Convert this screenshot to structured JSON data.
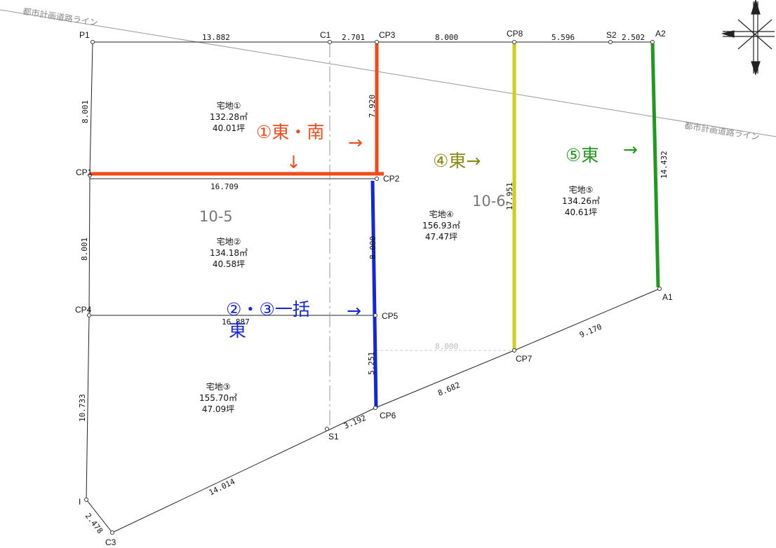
{
  "road_label": "都市計画道路ライン",
  "points": {
    "P1": "P1",
    "C1": "C1",
    "CP3": "CP3",
    "CP8": "CP8",
    "S2": "S2",
    "A2": "A2",
    "CP1": "CP1",
    "CP2": "CP2",
    "CP4": "CP4",
    "CP5": "CP5",
    "CP7": "CP7",
    "A1": "A1",
    "CP6": "CP6",
    "S1": "S1",
    "I": "I",
    "C3": "C3"
  },
  "dims": {
    "p1_c1": "13.882",
    "c1_cp3": "2.701",
    "cp3_cp8": "8.000",
    "cp8_s2": "5.596",
    "s2_a2": "2.502",
    "p1_cp1": "8.001",
    "cp1_cp4": "8.001",
    "cp4_i": "10.733",
    "cp3_cp2": "7.920",
    "cp1_cp2": "16.709",
    "cp4_cp5": "16.887",
    "cp2_cp5": "8.000",
    "cp5_cp6": "5.251",
    "cp8_cp7": "17.951",
    "a2_a1": "14.432",
    "cp5_cp7": "8.000",
    "a1_cp7": "9.170",
    "cp7_cp6": "8.682",
    "cp6_s1": "3.192",
    "s1_c3": "14.014",
    "i_c3": "2.478"
  },
  "lots": {
    "lot1": {
      "name": "宅地①",
      "sqm": "132.28㎡",
      "tsubo": "40.01坪"
    },
    "lot2": {
      "name": "宅地②",
      "sqm": "134.18㎡",
      "tsubo": "40.58坪"
    },
    "lot3": {
      "name": "宅地③",
      "sqm": "155.70㎡",
      "tsubo": "47.09坪"
    },
    "lot4": {
      "name": "宅地④",
      "sqm": "156.93㎡",
      "tsubo": "47.47坪"
    },
    "lot5": {
      "name": "宅地⑤",
      "sqm": "134.26㎡",
      "tsubo": "40.61坪"
    }
  },
  "area_labels": {
    "a105": "10-5",
    "a106": "10-6"
  },
  "annotations": {
    "lot1_face": "①東・南",
    "arrow_right": "→",
    "arrow_down": "↓",
    "lot23_face": "②・③一括",
    "lot23_face2": "東",
    "lot4_face": "④東→",
    "lot5_face": "⑤東"
  },
  "colors": {
    "lot1": "#f24a1a",
    "lot23": "#1426d9",
    "lot4": "#cfcd1e",
    "lot5": "#1f9a1f",
    "lot4_text": "#8b8a10"
  }
}
